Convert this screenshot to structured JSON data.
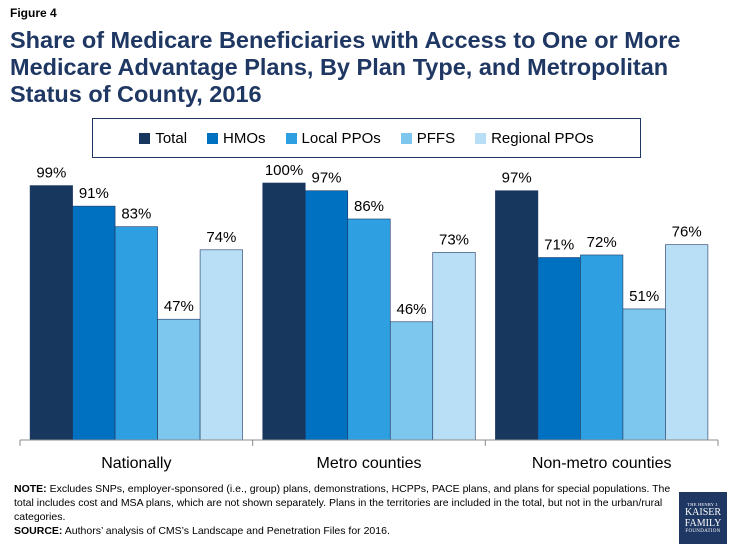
{
  "figure_label": "Figure 4",
  "title": "Share of Medicare Beneficiaries with Access to One or More Medicare Advantage Plans, By Plan Type, and Metropolitan Status of County, 2016",
  "colors": {
    "title": "#1f3763",
    "series": [
      "#17375e",
      "#0070c0",
      "#2e9fe0",
      "#7dc6ee",
      "#b8dff5"
    ],
    "axis": "#8c8c8c"
  },
  "chart_data": {
    "type": "bar",
    "title": "Share of Medicare Beneficiaries with Access to One or More Medicare Advantage Plans, By Plan Type, and Metropolitan Status of County, 2016",
    "categories": [
      "Nationally",
      "Metro counties",
      "Non-metro counties"
    ],
    "series": [
      {
        "name": "Total",
        "values": [
          99,
          100,
          97
        ],
        "labels": [
          "99%",
          "100%",
          "97%"
        ]
      },
      {
        "name": "HMOs",
        "values": [
          91,
          97,
          71
        ],
        "labels": [
          "91%",
          "97%",
          "71%"
        ]
      },
      {
        "name": "Local PPOs",
        "values": [
          83,
          86,
          72
        ],
        "labels": [
          "83%",
          "86%",
          "72%"
        ]
      },
      {
        "name": "PFFS",
        "values": [
          47,
          46,
          51
        ],
        "labels": [
          "47%",
          "46%",
          "51%"
        ]
      },
      {
        "name": "Regional PPOs",
        "values": [
          74,
          73,
          76
        ],
        "labels": [
          "74%",
          "73%",
          "76%"
        ]
      }
    ],
    "ylim": [
      0,
      100
    ],
    "xlabel": "",
    "ylabel": "",
    "grid": false,
    "legend_position": "top"
  },
  "notes": {
    "note_label": "NOTE:",
    "note_text": " Excludes SNPs, employer-sponsored (i.e., group) plans, demonstrations, HCPPs, PACE plans, and plans for special populations. The total includes cost and MSA plans, which are not shown separately.  Plans in the territories are included in the total, but not in the urban/rural categories.",
    "source_label": "SOURCE:",
    "source_text": "  Authors’ analysis of CMS’s Landscape and Penetration Files for 2016."
  },
  "logo": {
    "line1": "THE HENRY J.",
    "line2": "KAISER",
    "line3": "FAMILY",
    "line4": "FOUNDATION"
  }
}
